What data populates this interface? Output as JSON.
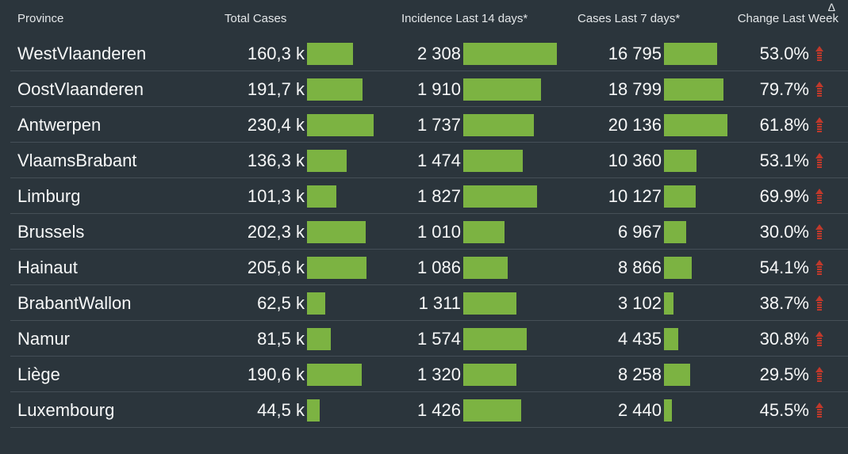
{
  "chart_data": {
    "type": "table",
    "title": "",
    "headers": {
      "province": "Province",
      "total_cases": "Total Cases",
      "incidence_14d": "Incidence Last 14 days*",
      "cases_7d": "Cases Last 7 days*",
      "change_last_week": "Change Last Week",
      "delta_symbol": "Δ"
    },
    "bar_maxima": {
      "total_cases_k": 230.4,
      "incidence_14d": 2308,
      "cases_7d": 20136
    },
    "rows": [
      {
        "province": "WestVlaanderen",
        "total_cases_label": "160,3 k",
        "total_cases_k": 160.3,
        "incidence_label": "2 308",
        "incidence": 2308,
        "cases_7d_label": "16 795",
        "cases_7d": 16795,
        "change_label": "53.0%",
        "trend": "up"
      },
      {
        "province": "OostVlaanderen",
        "total_cases_label": "191,7 k",
        "total_cases_k": 191.7,
        "incidence_label": "1 910",
        "incidence": 1910,
        "cases_7d_label": "18 799",
        "cases_7d": 18799,
        "change_label": "79.7%",
        "trend": "up"
      },
      {
        "province": "Antwerpen",
        "total_cases_label": "230,4 k",
        "total_cases_k": 230.4,
        "incidence_label": "1 737",
        "incidence": 1737,
        "cases_7d_label": "20 136",
        "cases_7d": 20136,
        "change_label": "61.8%",
        "trend": "up"
      },
      {
        "province": "VlaamsBrabant",
        "total_cases_label": "136,3 k",
        "total_cases_k": 136.3,
        "incidence_label": "1 474",
        "incidence": 1474,
        "cases_7d_label": "10 360",
        "cases_7d": 10360,
        "change_label": "53.1%",
        "trend": "up"
      },
      {
        "province": "Limburg",
        "total_cases_label": "101,3 k",
        "total_cases_k": 101.3,
        "incidence_label": "1 827",
        "incidence": 1827,
        "cases_7d_label": "10 127",
        "cases_7d": 10127,
        "change_label": "69.9%",
        "trend": "up"
      },
      {
        "province": "Brussels",
        "total_cases_label": "202,3 k",
        "total_cases_k": 202.3,
        "incidence_label": "1 010",
        "incidence": 1010,
        "cases_7d_label": "6 967",
        "cases_7d": 6967,
        "change_label": "30.0%",
        "trend": "up"
      },
      {
        "province": "Hainaut",
        "total_cases_label": "205,6 k",
        "total_cases_k": 205.6,
        "incidence_label": "1 086",
        "incidence": 1086,
        "cases_7d_label": "8 866",
        "cases_7d": 8866,
        "change_label": "54.1%",
        "trend": "up"
      },
      {
        "province": "BrabantWallon",
        "total_cases_label": "62,5 k",
        "total_cases_k": 62.5,
        "incidence_label": "1 311",
        "incidence": 1311,
        "cases_7d_label": "3 102",
        "cases_7d": 3102,
        "change_label": "38.7%",
        "trend": "up"
      },
      {
        "province": "Namur",
        "total_cases_label": "81,5 k",
        "total_cases_k": 81.5,
        "incidence_label": "1 574",
        "incidence": 1574,
        "cases_7d_label": "4 435",
        "cases_7d": 4435,
        "change_label": "30.8%",
        "trend": "up"
      },
      {
        "province": "Liège",
        "total_cases_label": "190,6 k",
        "total_cases_k": 190.6,
        "incidence_label": "1 320",
        "incidence": 1320,
        "cases_7d_label": "8 258",
        "cases_7d": 8258,
        "change_label": "29.5%",
        "trend": "up"
      },
      {
        "province": "Luxembourg",
        "total_cases_label": "44,5 k",
        "total_cases_k": 44.5,
        "incidence_label": "1 426",
        "incidence": 1426,
        "cases_7d_label": "2 440",
        "cases_7d": 2440,
        "change_label": "45.5%",
        "trend": "up"
      }
    ],
    "colors": {
      "background": "#2b353c",
      "row_divider": "#454f57",
      "text": "#f7f8f8",
      "header_text": "#e3e6e8",
      "bar_green": "#7cb342",
      "trend_up_red": "#c0392b"
    },
    "layout": {
      "bars": "inline horizontal bars right of each numeric value",
      "legend": "none",
      "grid": "row dividers only"
    }
  }
}
